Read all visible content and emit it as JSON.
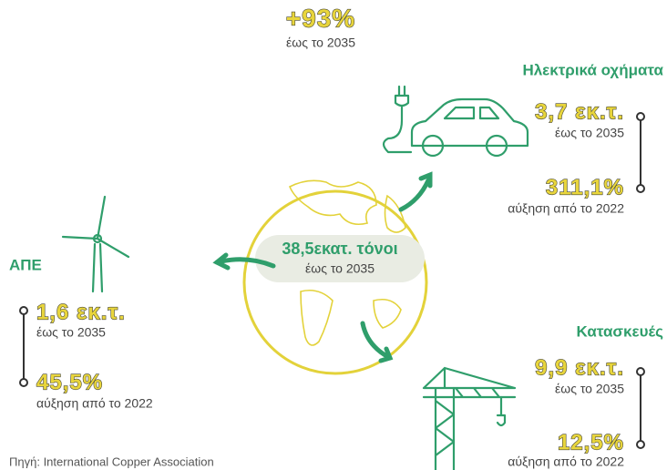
{
  "headline": {
    "value": "+93%",
    "note": "έως το 2035"
  },
  "center": {
    "value": "38,5εκατ. τόνοι",
    "note": "έως το 2035"
  },
  "sectors": [
    {
      "title": "Ηλεκτρικά οχήματα",
      "amount": "3,7 εκ.τ.",
      "amount_note": "έως το 2035",
      "growth": "311,1%",
      "growth_note": "αύξηση από το 2022"
    },
    {
      "title": "ΑΠΕ",
      "amount": "1,6 εκ.τ.",
      "amount_note": "έως το 2035",
      "growth": "45,5%",
      "growth_note": "αύξηση από το 2022"
    },
    {
      "title": "Κατασκευές",
      "amount": "9,9 εκ.τ.",
      "amount_note": "έως το 2035",
      "growth": "12,5%",
      "growth_note": "αύξηση από το 2022"
    }
  ],
  "source": "Πηγή: International Copper Association"
}
